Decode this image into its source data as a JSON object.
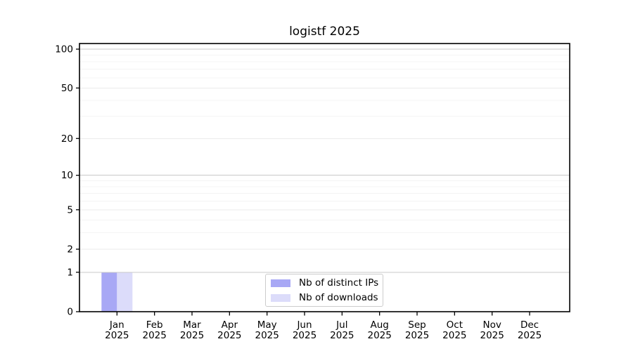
{
  "chart_data": {
    "type": "bar",
    "title": "logistf 2025",
    "categories": [
      {
        "month": "Jan",
        "year": "2025"
      },
      {
        "month": "Feb",
        "year": "2025"
      },
      {
        "month": "Mar",
        "year": "2025"
      },
      {
        "month": "Apr",
        "year": "2025"
      },
      {
        "month": "May",
        "year": "2025"
      },
      {
        "month": "Jun",
        "year": "2025"
      },
      {
        "month": "Jul",
        "year": "2025"
      },
      {
        "month": "Aug",
        "year": "2025"
      },
      {
        "month": "Sep",
        "year": "2025"
      },
      {
        "month": "Oct",
        "year": "2025"
      },
      {
        "month": "Nov",
        "year": "2025"
      },
      {
        "month": "Dec",
        "year": "2025"
      }
    ],
    "series": [
      {
        "name": "Nb of distinct IPs",
        "color": "#a8a8f5",
        "values": [
          1,
          0,
          0,
          0,
          0,
          0,
          0,
          0,
          0,
          0,
          0,
          0
        ]
      },
      {
        "name": "Nb of downloads",
        "color": "#dcdcfa",
        "values": [
          1,
          0,
          0,
          0,
          0,
          0,
          0,
          0,
          0,
          0,
          0,
          0
        ]
      }
    ],
    "xlabel": "",
    "ylabel": "",
    "y_scale": "log1p",
    "y_ticks": [
      0,
      1,
      2,
      5,
      10,
      20,
      50,
      100
    ],
    "y_minor_ticks": [
      3,
      4,
      6,
      7,
      8,
      9,
      30,
      40,
      60,
      70,
      80,
      90
    ],
    "ylim": [
      0,
      110
    ],
    "grid": true,
    "legend_position": "lower center",
    "colors": {
      "spine": "#000000",
      "major_grid_strong": "#c8c8c8",
      "major_grid_light": "#ebebeb",
      "minor_grid": "#f4f4f4",
      "tick_text": "#000000"
    }
  }
}
